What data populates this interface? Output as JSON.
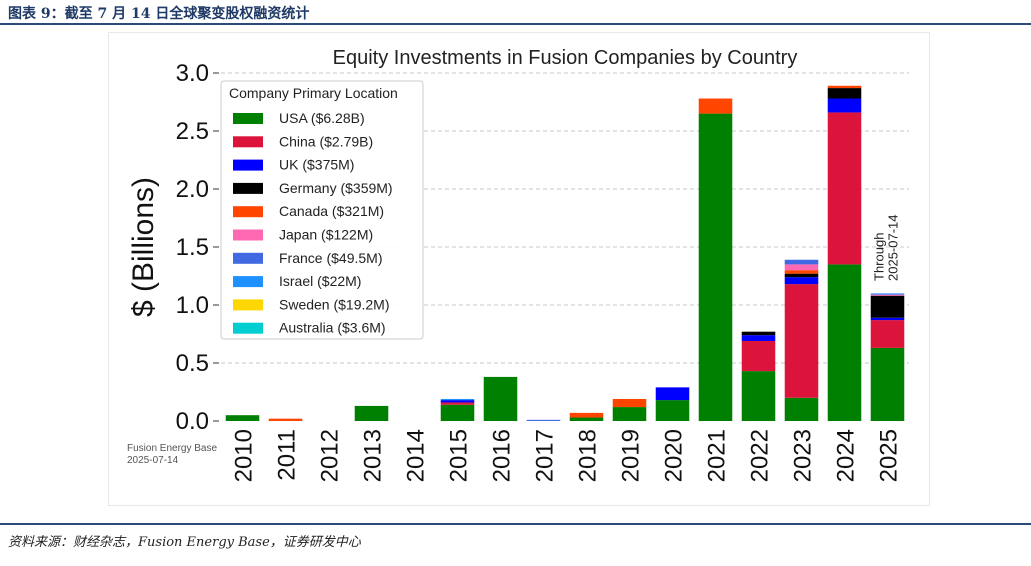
{
  "caption": "图表 9：截至 7 月 14 日全球聚变股权融资统计",
  "source": "资料来源：财经杂志，Fusion Energy Base，证券研发中心",
  "chart_data": {
    "type": "bar",
    "stacked": true,
    "title": "Equity Investments in Fusion Companies by Country",
    "ylabel": "$ (Billions)",
    "ylim": [
      0,
      3.0
    ],
    "yticks": [
      "0.0",
      "0.5",
      "1.0",
      "1.5",
      "2.0",
      "2.5",
      "3.0"
    ],
    "grid": "horizontal dashed",
    "categories": [
      "2010",
      "2011",
      "2012",
      "2013",
      "2014",
      "2015",
      "2016",
      "2017",
      "2018",
      "2019",
      "2020",
      "2021",
      "2022",
      "2023",
      "2024",
      "2025"
    ],
    "legend_title": "Company Primary Location",
    "legend_position": "top-left",
    "series": [
      {
        "name": "USA ($6.28B)",
        "color": "#008000",
        "values": [
          0.05,
          0,
          0,
          0.13,
          0,
          0.14,
          0.38,
          0,
          0.03,
          0.12,
          0.18,
          2.65,
          0.43,
          0.2,
          1.35,
          0.63
        ]
      },
      {
        "name": "China ($2.79B)",
        "color": "#dc143c",
        "values": [
          0,
          0,
          0,
          0,
          0,
          0.02,
          0,
          0,
          0,
          0,
          0,
          0,
          0.26,
          0.98,
          1.31,
          0.24
        ]
      },
      {
        "name": "UK ($375M)",
        "color": "#0000ff",
        "values": [
          0,
          0,
          0,
          0,
          0,
          0.02,
          0,
          0,
          0,
          0,
          0.11,
          0,
          0.05,
          0.06,
          0.12,
          0.02
        ]
      },
      {
        "name": "Germany ($359M)",
        "color": "#000000",
        "values": [
          0,
          0,
          0,
          0,
          0,
          0,
          0,
          0,
          0,
          0,
          0,
          0,
          0.03,
          0.03,
          0.09,
          0.19
        ]
      },
      {
        "name": "Canada ($321M)",
        "color": "#ff4500",
        "values": [
          0,
          0.02,
          0,
          0,
          0,
          0,
          0,
          0,
          0.04,
          0.07,
          0,
          0.13,
          0,
          0.03,
          0.02,
          0
        ]
      },
      {
        "name": "Japan ($122M)",
        "color": "#ff69b4",
        "values": [
          0,
          0,
          0,
          0,
          0,
          0,
          0,
          0,
          0,
          0,
          0,
          0,
          0,
          0.05,
          0,
          0.01
        ]
      },
      {
        "name": "France ($49.5M)",
        "color": "#4169e1",
        "values": [
          0,
          0,
          0,
          0,
          0,
          0,
          0,
          0.01,
          0,
          0,
          0,
          0,
          0,
          0.04,
          0,
          0
        ]
      },
      {
        "name": "Israel ($22M)",
        "color": "#1e90ff",
        "values": [
          0,
          0,
          0,
          0,
          0,
          0.01,
          0,
          0,
          0,
          0,
          0,
          0,
          0,
          0,
          0,
          0.01
        ]
      },
      {
        "name": "Sweden ($19.2M)",
        "color": "#ffd700",
        "values": [
          0,
          0,
          0,
          0,
          0,
          0,
          0,
          0,
          0,
          0,
          0,
          0,
          0,
          0,
          0,
          0
        ]
      },
      {
        "name": "Australia ($3.6M)",
        "color": "#00ced1",
        "values": [
          0,
          0,
          0,
          0,
          0,
          0,
          0,
          0,
          0,
          0,
          0,
          0,
          0,
          0,
          0,
          0
        ]
      }
    ],
    "annotations": [
      {
        "text": "Through\n2025-07-14",
        "category": "2025"
      },
      {
        "text": "Fusion Energy Base\n2025-07-14",
        "position": "bottom-left"
      }
    ]
  }
}
